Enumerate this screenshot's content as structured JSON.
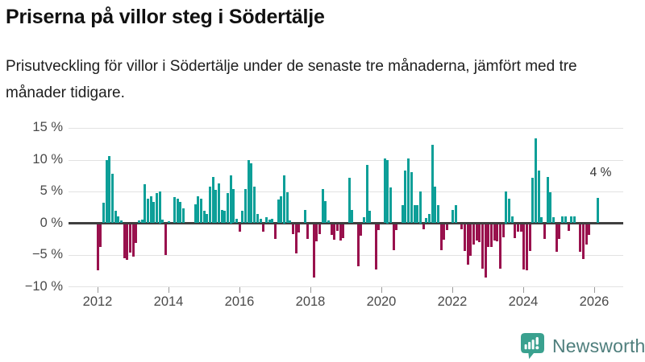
{
  "header": {
    "title": "Priserna på villor steg i Södertälje",
    "subtitle": "Prisutveckling för villor i Södertälje under de senaste tre månaderna, jämfört med tre månader tidigare."
  },
  "annotation": {
    "last_value_label": "4 %"
  },
  "branding": {
    "name": "Newsworthy",
    "icon": "bar-chart-speech-bubble-icon"
  },
  "colors": {
    "positive_bar": "#0d9f98",
    "negative_bar": "#99114d",
    "zero_axis": "#3f3f3f",
    "gridline": "#e2e2e2",
    "axis_text": "#4a4a4a",
    "logo_icon": "#3aa18f",
    "logo_text": "#4e7e7c"
  },
  "chart_data": {
    "type": "bar",
    "title": "Priserna på villor steg i Södertälje",
    "subtitle": "Prisutveckling för villor i Södertälje under de senaste tre månaderna, jämfört med tre månader tidigare.",
    "unit": "%",
    "frequency": "monthly",
    "x_start": "2012-01",
    "x_end": "2026-02",
    "x_tick_years": [
      "2012",
      "2014",
      "2016",
      "2018",
      "2020",
      "2022",
      "2024",
      "2026"
    ],
    "y_tick_labels": [
      "15 %",
      "10 %",
      "5 %",
      "0 %",
      "−5 %",
      "−10 %"
    ],
    "y_tick_values": [
      15,
      10,
      5,
      0,
      -5,
      -10
    ],
    "ylim": [
      -10,
      15
    ],
    "grid": true,
    "legend": false,
    "last_point_annotation": "4 %",
    "values": [
      -7.2,
      -3.5,
      3.2,
      9.9,
      10.6,
      7.8,
      2.0,
      1.1,
      0.5,
      -5.3,
      -5.6,
      -4.4,
      -5.0,
      -2.9,
      0.4,
      0.6,
      6.2,
      3.9,
      4.2,
      3.4,
      4.8,
      5.0,
      0.6,
      -4.8,
      0.3,
      0,
      4.1,
      3.9,
      3.4,
      2.3,
      0,
      0,
      0,
      3.0,
      4.2,
      3.8,
      2.0,
      1.4,
      5.8,
      7.3,
      5.2,
      6.3,
      2.1,
      2.0,
      4.8,
      7.5,
      5.4,
      0.7,
      -1.2,
      2.0,
      5.4,
      9.9,
      9.4,
      5.7,
      1.5,
      0.7,
      -1.2,
      0.9,
      0.6,
      0.7,
      -2.3,
      3.7,
      4.2,
      7.5,
      4.9,
      0.5,
      -1.5,
      -4.5,
      -1.3,
      0,
      2.1,
      -2.3,
      0,
      -8.3,
      -2.7,
      -1.5,
      5.4,
      3.5,
      0.4,
      -1.6,
      -2.4,
      -1.0,
      -2.5,
      -2.2,
      0,
      7.2,
      2.1,
      0,
      -6.6,
      -1.8,
      0.9,
      9.2,
      1.9,
      0,
      -7.1,
      -0.9,
      0,
      10.2,
      10.0,
      5.6,
      -4.1,
      -0.9,
      0,
      2.8,
      8.3,
      10.2,
      8.1,
      2.8,
      2.8,
      5.0,
      -0.8,
      0.8,
      1.5,
      12.4,
      5.8,
      2.8,
      -4.1,
      -2.4,
      -0.9,
      0,
      2.1,
      2.9,
      0,
      -0.8,
      -4.2,
      -6.3,
      -4.9,
      -3.2,
      -2.5,
      -2.8,
      -7.0,
      -8.3,
      -3.5,
      -3.6,
      -2.5,
      -2.7,
      -6.9,
      -2.0,
      5.0,
      3.8,
      1.1,
      -2.1,
      -1.1,
      -1.2,
      -7.1,
      -7.2,
      -4.2,
      7.2,
      13.4,
      8.3,
      1.0,
      -2.3,
      7.3,
      4.9,
      1.0,
      -4.3,
      -2.3,
      1.1,
      1.1,
      -1.0,
      1.1,
      1.1,
      0,
      -4.3,
      -5.5,
      -3.2,
      -1.6,
      0,
      0,
      4.0
    ]
  }
}
